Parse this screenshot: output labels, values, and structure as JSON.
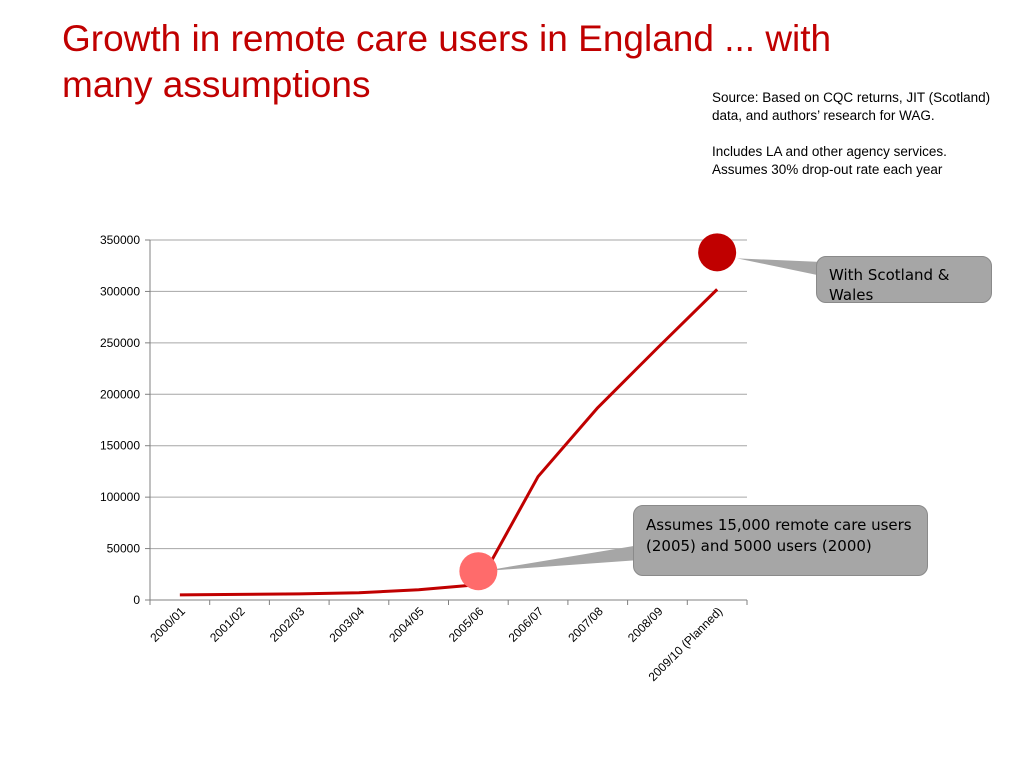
{
  "slide": {
    "title_line1": "Growth in remote care users in England ... with",
    "title_line2": "many assumptions",
    "source_note": "Source: Based on CQC returns, JIT (Scotland) data, and authors’ research for WAG.",
    "includes_note": "Includes LA and other agency services. Assumes 30% drop-out rate each year",
    "colors": {
      "title": "#c00000",
      "line": "#c00000",
      "marker_dark": "#c00000",
      "marker_light": "#ff6b6b",
      "callout": "#a6a6a6",
      "grid": "#a6a6a6"
    }
  },
  "callouts": {
    "scotland": "With Scotland & Wales",
    "assumes": "Assumes 15,000 remote care users (2005) and 5000 users (2000)"
  },
  "chart_data": {
    "type": "line",
    "categories": [
      "2000/01",
      "2001/02",
      "2002/03",
      "2003/04",
      "2004/05",
      "2005/06",
      "2006/07",
      "2007/08",
      "2008/09",
      "2009/10 (Planned)"
    ],
    "series": [
      {
        "values": [
          5000,
          5500,
          6000,
          7000,
          10000,
          15000,
          120000,
          187000,
          245000,
          302000
        ]
      }
    ],
    "markers": [
      {
        "category": "2005/06",
        "value": 28000,
        "style": "light"
      },
      {
        "category": "2009/10 (Planned)",
        "value": 338000,
        "style": "dark"
      }
    ],
    "ylim": [
      0,
      350000
    ],
    "yticks": [
      0,
      50000,
      100000,
      150000,
      200000,
      250000,
      300000,
      350000
    ],
    "grid": true,
    "legend": "none"
  }
}
